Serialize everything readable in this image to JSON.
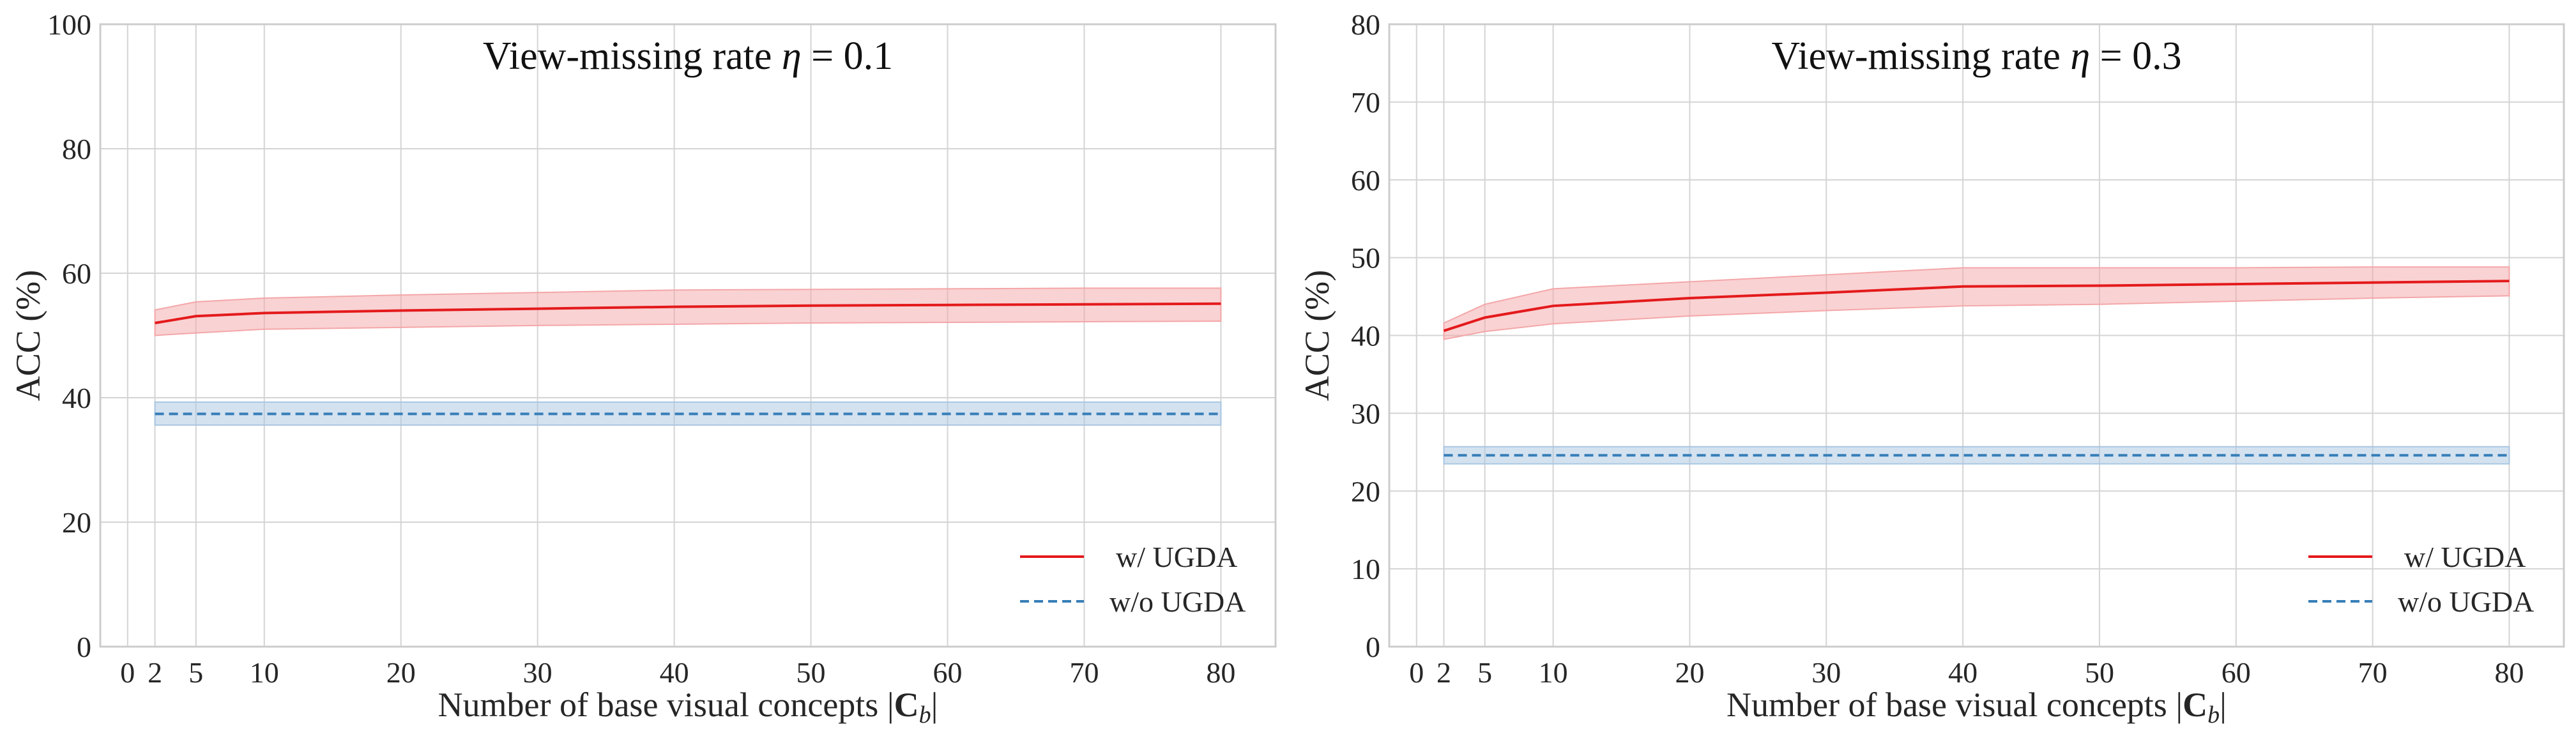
{
  "figure": {
    "panels": 2
  },
  "chart_data": [
    {
      "type": "line",
      "title": "View-missing rate η = 0.1",
      "title_parts": {
        "prefix": "View-missing rate ",
        "symbol": "η",
        "suffix": " = 0.1"
      },
      "xlabel": "Number of base visual concepts |C_b|",
      "xlabel_parts": {
        "text": "Number of base visual concepts ",
        "bar": "|",
        "bold": "C",
        "sub": "b"
      },
      "ylabel": "ACC (%)",
      "xlim": [
        -2,
        84
      ],
      "ylim": [
        0,
        100
      ],
      "xticks": [
        0,
        2,
        5,
        10,
        20,
        30,
        40,
        50,
        60,
        70,
        80
      ],
      "yticks": [
        0,
        20,
        40,
        60,
        80,
        100
      ],
      "grid": true,
      "legend": {
        "placement": "lower-right"
      },
      "x": [
        2,
        5,
        10,
        20,
        30,
        40,
        50,
        60,
        70,
        80
      ],
      "series": [
        {
          "name": "w/ UGDA",
          "style": "solid",
          "color": "#e41a1c",
          "band_color": "#f4a6a8",
          "values": [
            52.0,
            53.1,
            53.6,
            54.0,
            54.3,
            54.6,
            54.8,
            54.9,
            55.0,
            55.1
          ],
          "upper": [
            54.1,
            55.4,
            56.0,
            56.5,
            56.9,
            57.3,
            57.4,
            57.5,
            57.6,
            57.6
          ],
          "lower": [
            50.0,
            50.4,
            51.0,
            51.3,
            51.6,
            51.8,
            52.0,
            52.1,
            52.2,
            52.3
          ]
        },
        {
          "name": "w/o UGDA",
          "style": "dashed",
          "color": "#377eb8",
          "band_color": "#a9c6e2",
          "values": [
            37.4,
            37.4,
            37.4,
            37.4,
            37.4,
            37.4,
            37.4,
            37.4,
            37.4,
            37.4
          ],
          "upper": [
            39.3,
            39.3,
            39.3,
            39.3,
            39.3,
            39.3,
            39.3,
            39.3,
            39.3,
            39.3
          ],
          "lower": [
            35.6,
            35.6,
            35.6,
            35.6,
            35.6,
            35.6,
            35.6,
            35.6,
            35.6,
            35.6
          ]
        }
      ]
    },
    {
      "type": "line",
      "title": "View-missing rate η = 0.3",
      "title_parts": {
        "prefix": "View-missing rate ",
        "symbol": "η",
        "suffix": " = 0.3"
      },
      "xlabel": "Number of base visual concepts |C_b|",
      "xlabel_parts": {
        "text": "Number of base visual concepts ",
        "bar": "|",
        "bold": "C",
        "sub": "b"
      },
      "ylabel": "ACC (%)",
      "xlim": [
        -2,
        84
      ],
      "ylim": [
        0,
        80
      ],
      "xticks": [
        0,
        2,
        5,
        10,
        20,
        30,
        40,
        50,
        60,
        70,
        80
      ],
      "yticks": [
        0,
        10,
        20,
        30,
        40,
        50,
        60,
        70,
        80
      ],
      "grid": true,
      "legend": {
        "placement": "lower-right"
      },
      "x": [
        2,
        5,
        10,
        20,
        30,
        40,
        50,
        60,
        70,
        80
      ],
      "series": [
        {
          "name": "w/ UGDA",
          "style": "solid",
          "color": "#e41a1c",
          "band_color": "#f4a6a8",
          "values": [
            40.6,
            42.3,
            43.8,
            44.8,
            45.5,
            46.3,
            46.4,
            46.6,
            46.8,
            47.0
          ],
          "upper": [
            41.6,
            44.0,
            46.0,
            46.9,
            47.8,
            48.7,
            48.7,
            48.7,
            48.8,
            48.8
          ],
          "lower": [
            39.5,
            40.5,
            41.5,
            42.5,
            43.2,
            43.8,
            44.0,
            44.4,
            44.8,
            45.1
          ]
        },
        {
          "name": "w/o UGDA",
          "style": "dashed",
          "color": "#377eb8",
          "band_color": "#a9c6e2",
          "values": [
            24.6,
            24.6,
            24.6,
            24.6,
            24.6,
            24.6,
            24.6,
            24.6,
            24.6,
            24.6
          ],
          "upper": [
            25.7,
            25.7,
            25.7,
            25.7,
            25.7,
            25.7,
            25.7,
            25.7,
            25.7,
            25.7
          ],
          "lower": [
            23.5,
            23.5,
            23.5,
            23.5,
            23.5,
            23.5,
            23.5,
            23.5,
            23.5,
            23.5
          ]
        }
      ]
    }
  ]
}
